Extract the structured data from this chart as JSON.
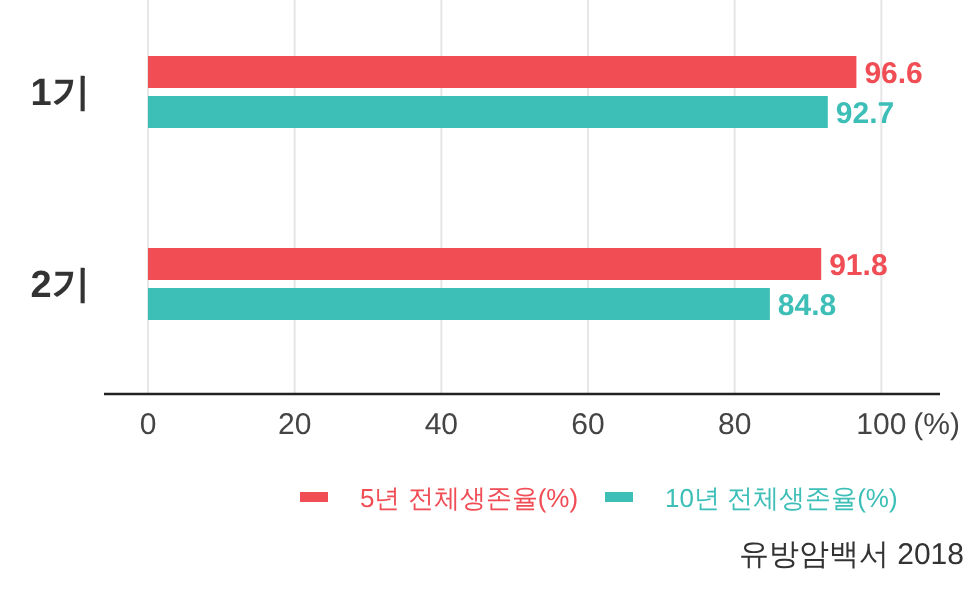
{
  "chart_data": {
    "type": "bar",
    "orientation": "horizontal",
    "categories": [
      "1기",
      "2기"
    ],
    "series": [
      {
        "name": "5년 전체생존율(%)",
        "color": "#f04d55",
        "values": [
          96.6,
          91.8
        ]
      },
      {
        "name": "10년 전체생존율(%)",
        "color": "#3dbfb8",
        "values": [
          92.7,
          84.8
        ]
      }
    ],
    "xlim": [
      -6,
      108
    ],
    "xticks": [
      0,
      20,
      40,
      60,
      80,
      100
    ],
    "xlabel": "(%)",
    "grid": "x",
    "legend": "bottom",
    "data_labels": true,
    "annotations": [
      "유방암백서 2018"
    ]
  }
}
